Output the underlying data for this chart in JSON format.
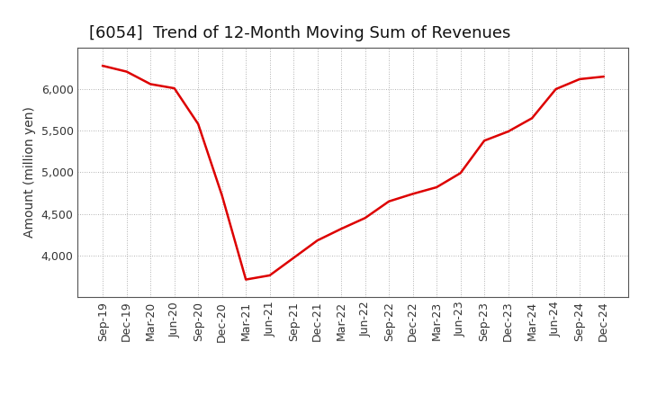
{
  "title": "[6054]  Trend of 12-Month Moving Sum of Revenues",
  "ylabel": "Amount (million yen)",
  "line_color": "#dd0000",
  "line_width": 1.8,
  "background_color": "#ffffff",
  "grid_color": "#999999",
  "x_labels": [
    "Sep-19",
    "Dec-19",
    "Mar-20",
    "Jun-20",
    "Sep-20",
    "Dec-20",
    "Mar-21",
    "Jun-21",
    "Sep-21",
    "Dec-21",
    "Mar-22",
    "Jun-22",
    "Sep-22",
    "Dec-22",
    "Mar-23",
    "Jun-23",
    "Sep-23",
    "Dec-23",
    "Mar-24",
    "Jun-24",
    "Sep-24",
    "Dec-24"
  ],
  "values": [
    6280,
    6210,
    6060,
    6010,
    5580,
    4720,
    3710,
    3760,
    3970,
    4180,
    4320,
    4450,
    4650,
    4740,
    4820,
    4990,
    5380,
    5490,
    5650,
    6000,
    6120,
    6150
  ],
  "ylim_min": 3500,
  "ylim_max": 6500,
  "yticks": [
    4000,
    4500,
    5000,
    5500,
    6000
  ],
  "title_fontsize": 13,
  "label_fontsize": 10,
  "tick_fontsize": 9,
  "title_fontweight": "normal"
}
